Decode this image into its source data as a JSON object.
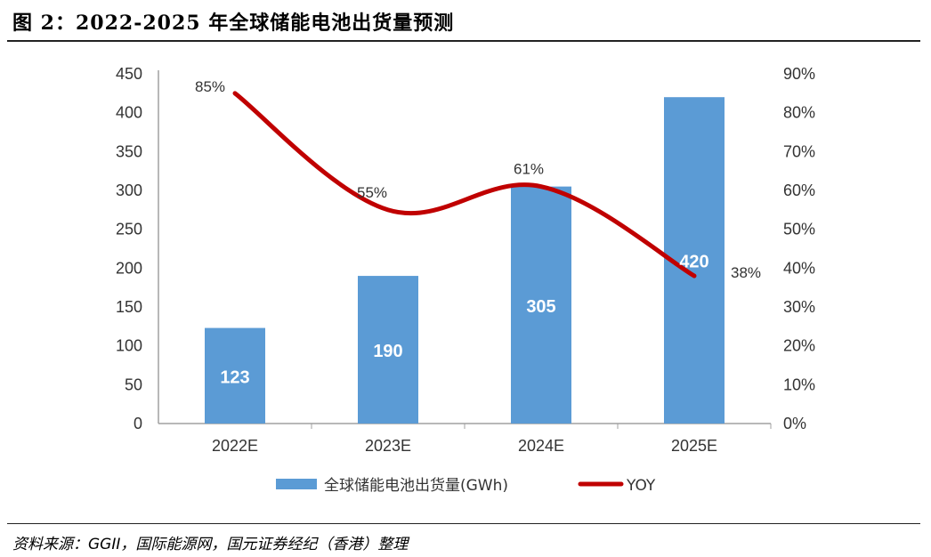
{
  "header": {
    "title": "图 2：2022-2025 年全球储能电池出货量预测"
  },
  "footer": {
    "source": "资料来源：GGII，国际能源网，国元证券经纪（香港）整理"
  },
  "colors": {
    "bar": "#5B9BD5",
    "line": "#C00000",
    "axis": "#A0A0A0",
    "text": "#333333"
  },
  "chart_data": {
    "type": "bar",
    "categories": [
      "2022E",
      "2023E",
      "2024E",
      "2025E"
    ],
    "series": [
      {
        "name": "全球储能电池出货量(GWh)",
        "type": "bar",
        "axis": "left",
        "values": [
          123,
          190,
          305,
          420
        ],
        "labels": [
          "123",
          "190",
          "305",
          "420"
        ]
      },
      {
        "name": "YOY",
        "type": "line",
        "axis": "right",
        "smooth": true,
        "values": [
          85,
          55,
          61,
          38
        ],
        "labels": [
          "85%",
          "55%",
          "61%",
          "38%"
        ]
      }
    ],
    "y_left": {
      "min": 0,
      "max": 450,
      "step": 50,
      "ticks": [
        "0",
        "50",
        "100",
        "150",
        "200",
        "250",
        "300",
        "350",
        "400",
        "450"
      ]
    },
    "y_right": {
      "min": 0,
      "max": 90,
      "step": 10,
      "ticks": [
        "0%",
        "10%",
        "20%",
        "30%",
        "40%",
        "50%",
        "60%",
        "70%",
        "80%",
        "90%"
      ]
    },
    "grid": false,
    "legend_position": "bottom"
  }
}
